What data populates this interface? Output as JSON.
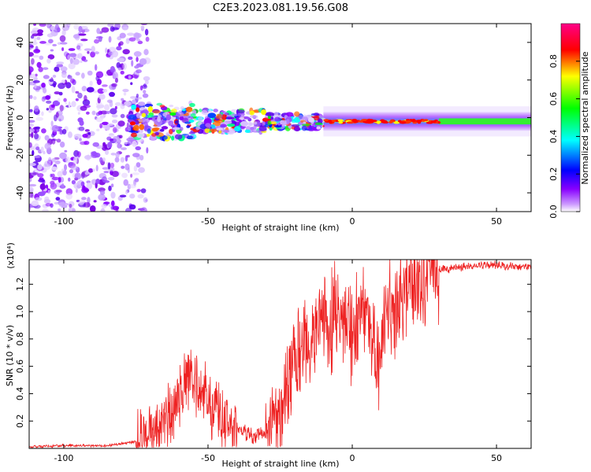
{
  "title": "C2E3.2023.081.19.56.G08",
  "chart_data": [
    {
      "type": "heatmap",
      "name": "spectrogram",
      "xlabel": "Height of straight line (km)",
      "ylabel": "Frequency (Hz)",
      "xlim": [
        -112,
        62
      ],
      "ylim": [
        -50,
        50
      ],
      "xticks": [
        -100,
        -50,
        0,
        50
      ],
      "yticks": [
        -40,
        -20,
        0,
        20,
        40
      ],
      "colorbar": {
        "label": "Normalized spectral amplitude",
        "range": [
          0,
          1
        ],
        "ticks": [
          0.0,
          0.2,
          0.4,
          0.6,
          0.8
        ],
        "colors": [
          "#ffffff",
          "#8800ff",
          "#0000ff",
          "#00ffff",
          "#00ff00",
          "#ffff00",
          "#ff0000",
          "#ff0088"
        ]
      },
      "regions": [
        {
          "desc": "noise",
          "x_range": [
            -112,
            -75
          ],
          "freq_range": [
            -50,
            50
          ],
          "amplitude": 0.05
        },
        {
          "desc": "signal-turbulent",
          "x_range": [
            -75,
            -10
          ],
          "center_freq": -2,
          "amplitude_range": [
            0.2,
            0.7
          ]
        },
        {
          "desc": "signal-stable",
          "x_range": [
            -10,
            62
          ],
          "center_freq": -2,
          "amplitude_range": [
            0.5,
            0.95
          ]
        }
      ]
    },
    {
      "type": "line",
      "name": "snr",
      "xlabel": "Height of straight line (km)",
      "ylabel": "SNR (10 * v/v)",
      "scale_label": "(x10⁴)",
      "xlim": [
        -112,
        62
      ],
      "ylim": [
        0,
        1.38
      ],
      "xticks": [
        -100,
        -50,
        0,
        50
      ],
      "yticks": [
        0.2,
        0.4,
        0.6,
        0.8,
        1.0,
        1.2
      ],
      "series": [
        {
          "name": "SNR",
          "color": "#ee2222",
          "x": [
            -112,
            -100,
            -85,
            -75,
            -70,
            -65,
            -60,
            -57,
            -55,
            -52,
            -50,
            -45,
            -40,
            -35,
            -30,
            -25,
            -22,
            -20,
            -18,
            -15,
            -12,
            -10,
            -8,
            -5,
            -2,
            0,
            3,
            5,
            8,
            10,
            12,
            15,
            18,
            20,
            25,
            30,
            35,
            40,
            45,
            50,
            55,
            62
          ],
          "y": [
            0.01,
            0.02,
            0.02,
            0.05,
            0.12,
            0.22,
            0.35,
            0.55,
            0.45,
            0.4,
            0.35,
            0.2,
            0.15,
            0.1,
            0.1,
            0.3,
            0.5,
            0.65,
            0.7,
            0.75,
            0.85,
            0.95,
            0.9,
            1.0,
            0.95,
            0.8,
            1.0,
            1.05,
            0.7,
            0.65,
            1.1,
            1.0,
            1.15,
            1.2,
            1.25,
            1.3,
            1.32,
            1.33,
            1.34,
            1.34,
            1.33,
            1.32
          ]
        }
      ]
    }
  ]
}
